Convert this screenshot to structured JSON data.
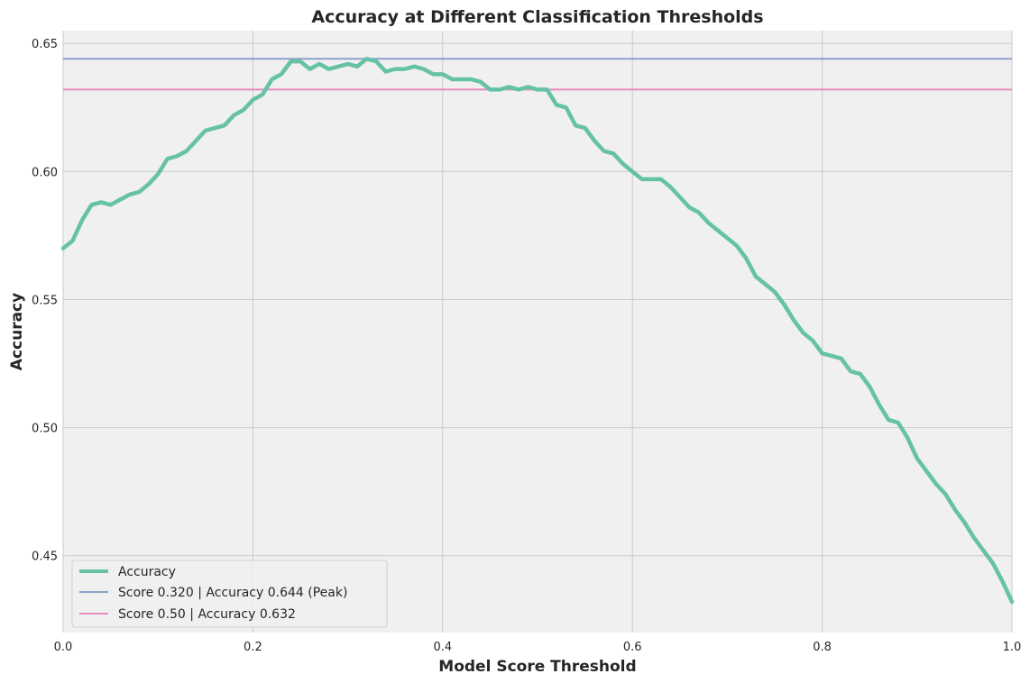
{
  "chart_data": {
    "type": "line",
    "title": "Accuracy at Different Classification Thresholds",
    "xlabel": "Model Score Threshold",
    "ylabel": "Accuracy",
    "xlim": [
      0,
      1
    ],
    "ylim": [
      0.42,
      0.655
    ],
    "x_ticks": [
      0.0,
      0.2,
      0.4,
      0.6,
      0.8,
      1.0
    ],
    "x_tick_labels": [
      "0.0",
      "0.2",
      "0.4",
      "0.6",
      "0.8",
      "1.0"
    ],
    "y_ticks": [
      0.45,
      0.5,
      0.55,
      0.6,
      0.65
    ],
    "y_tick_labels": [
      "0.45",
      "0.50",
      "0.55",
      "0.60",
      "0.65"
    ],
    "grid": true,
    "legend_position": "lower-left",
    "series": [
      {
        "name": "Accuracy",
        "color": "#66c2a5",
        "x": [
          0.0,
          0.01,
          0.02,
          0.03,
          0.04,
          0.05,
          0.06,
          0.07,
          0.08,
          0.09,
          0.1,
          0.11,
          0.12,
          0.13,
          0.14,
          0.15,
          0.16,
          0.17,
          0.18,
          0.19,
          0.2,
          0.21,
          0.22,
          0.23,
          0.24,
          0.25,
          0.26,
          0.27,
          0.28,
          0.29,
          0.3,
          0.31,
          0.32,
          0.33,
          0.34,
          0.35,
          0.36,
          0.37,
          0.38,
          0.39,
          0.4,
          0.41,
          0.42,
          0.43,
          0.44,
          0.45,
          0.46,
          0.47,
          0.48,
          0.49,
          0.5,
          0.51,
          0.52,
          0.53,
          0.54,
          0.55,
          0.56,
          0.57,
          0.58,
          0.59,
          0.6,
          0.61,
          0.62,
          0.63,
          0.64,
          0.65,
          0.66,
          0.67,
          0.68,
          0.69,
          0.7,
          0.71,
          0.72,
          0.73,
          0.74,
          0.75,
          0.76,
          0.77,
          0.78,
          0.79,
          0.8,
          0.81,
          0.82,
          0.83,
          0.84,
          0.85,
          0.86,
          0.87,
          0.88,
          0.89,
          0.9,
          0.91,
          0.92,
          0.93,
          0.94,
          0.95,
          0.96,
          0.97,
          0.98,
          0.99,
          1.0
        ],
        "values": [
          0.57,
          0.573,
          0.581,
          0.587,
          0.588,
          0.587,
          0.589,
          0.591,
          0.592,
          0.595,
          0.599,
          0.605,
          0.606,
          0.608,
          0.612,
          0.616,
          0.617,
          0.618,
          0.622,
          0.624,
          0.628,
          0.63,
          0.636,
          0.638,
          0.643,
          0.643,
          0.64,
          0.642,
          0.64,
          0.641,
          0.642,
          0.641,
          0.644,
          0.643,
          0.639,
          0.64,
          0.64,
          0.641,
          0.64,
          0.638,
          0.638,
          0.636,
          0.636,
          0.636,
          0.635,
          0.632,
          0.632,
          0.633,
          0.632,
          0.633,
          0.632,
          0.632,
          0.626,
          0.625,
          0.618,
          0.617,
          0.612,
          0.608,
          0.607,
          0.603,
          0.6,
          0.597,
          0.597,
          0.597,
          0.594,
          0.59,
          0.586,
          0.584,
          0.58,
          0.577,
          0.574,
          0.571,
          0.566,
          0.559,
          0.556,
          0.553,
          0.548,
          0.542,
          0.537,
          0.534,
          0.529,
          0.528,
          0.527,
          0.522,
          0.521,
          0.516,
          0.509,
          0.503,
          0.502,
          0.496,
          0.488,
          0.483,
          0.478,
          0.474,
          0.468,
          0.463,
          0.457,
          0.452,
          0.447,
          0.44,
          0.432
        ]
      },
      {
        "name": "Score 0.320 | Accuracy 0.644 (Peak)",
        "color": "#8da0cb",
        "hline": 0.644
      },
      {
        "name": "Score 0.50 | Accuracy 0.632",
        "color": "#e78ac3",
        "hline": 0.632
      }
    ]
  }
}
